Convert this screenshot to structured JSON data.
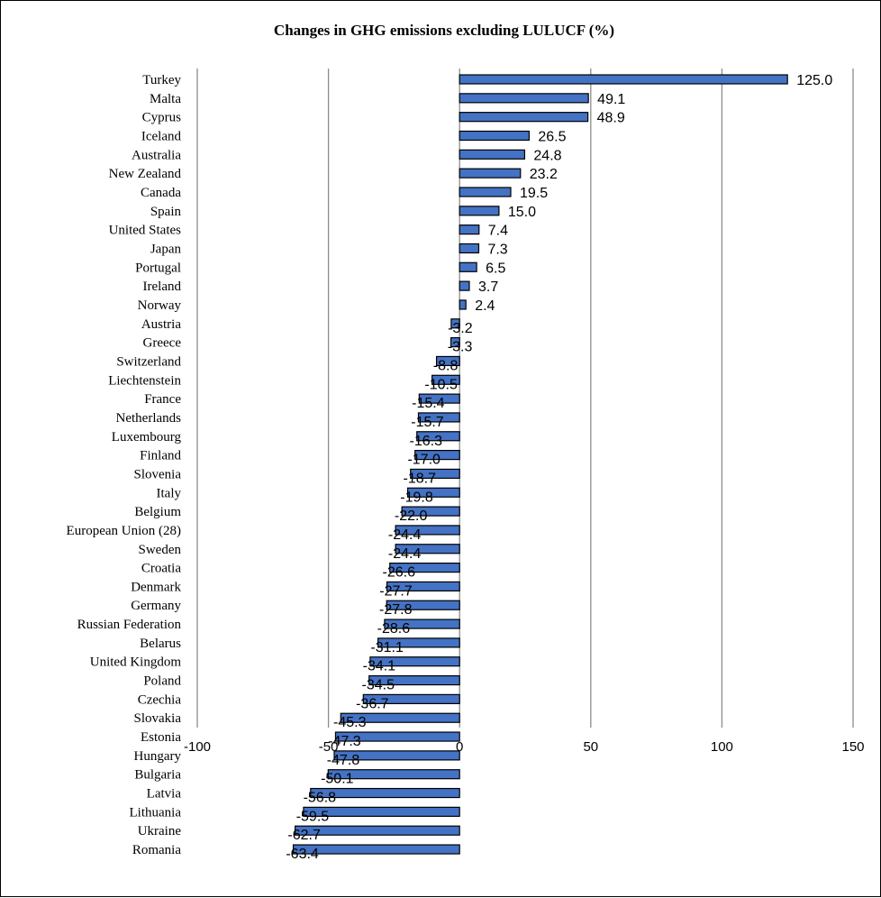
{
  "chart_data": {
    "type": "bar",
    "orientation": "horizontal",
    "title": "Changes in GHG emissions excluding LULUCF (%)",
    "xlabel": "",
    "ylabel": "",
    "xlim": [
      -100,
      150
    ],
    "xticks": [
      -100,
      -50,
      0,
      50,
      100,
      150
    ],
    "grid": true,
    "bar_color": "#4472C4",
    "bar_edge_color": "#000000",
    "categories": [
      "Turkey",
      "Malta",
      "Cyprus",
      "Iceland",
      "Australia",
      "New Zealand",
      "Canada",
      "Spain",
      "United States",
      "Japan",
      "Portugal",
      "Ireland",
      "Norway",
      "Austria",
      "Greece",
      "Switzerland",
      "Liechtenstein",
      "France",
      "Netherlands",
      "Luxembourg",
      "Finland",
      "Slovenia",
      "Italy",
      "Belgium",
      "European Union (28)",
      "Sweden",
      "Croatia",
      "Denmark",
      "Germany",
      "Russian Federation",
      "Belarus",
      "United Kingdom",
      "Poland",
      "Czechia",
      "Slovakia",
      "Estonia",
      "Hungary",
      "Bulgaria",
      "Latvia",
      "Lithuania",
      "Ukraine",
      "Romania"
    ],
    "values": [
      125.0,
      49.1,
      48.9,
      26.5,
      24.8,
      23.2,
      19.5,
      15.0,
      7.4,
      7.3,
      6.5,
      3.7,
      2.4,
      -3.2,
      -3.3,
      -8.8,
      -10.5,
      -15.4,
      -15.7,
      -16.3,
      -17.0,
      -18.7,
      -19.8,
      -22.0,
      -24.4,
      -24.4,
      -26.6,
      -27.7,
      -27.8,
      -28.6,
      -31.1,
      -34.1,
      -34.5,
      -36.7,
      -45.3,
      -47.3,
      -47.8,
      -50.1,
      -56.8,
      -59.5,
      -62.7,
      -63.4
    ],
    "value_labels": [
      "125.0",
      "49.1",
      "48.9",
      "26.5",
      "24.8",
      "23.2",
      "19.5",
      "15.0",
      "7.4",
      "7.3",
      "6.5",
      "3.7",
      "2.4",
      "-3.2",
      "-3.3",
      "-8.8",
      "-10.5",
      "-15.4",
      "-15.7",
      "-16.3",
      "-17.0",
      "-18.7",
      "-19.8",
      "-22.0",
      "-24.4",
      "-24.4",
      "-26.6",
      "-27.7",
      "-27.8",
      "-28.6",
      "-31.1",
      "-34.1",
      "-34.5",
      "-36.7",
      "-45.3",
      "-47.3",
      "-47.8",
      "-50.1",
      "-56.8",
      "-59.5",
      "-62.7",
      "-63.4"
    ]
  }
}
